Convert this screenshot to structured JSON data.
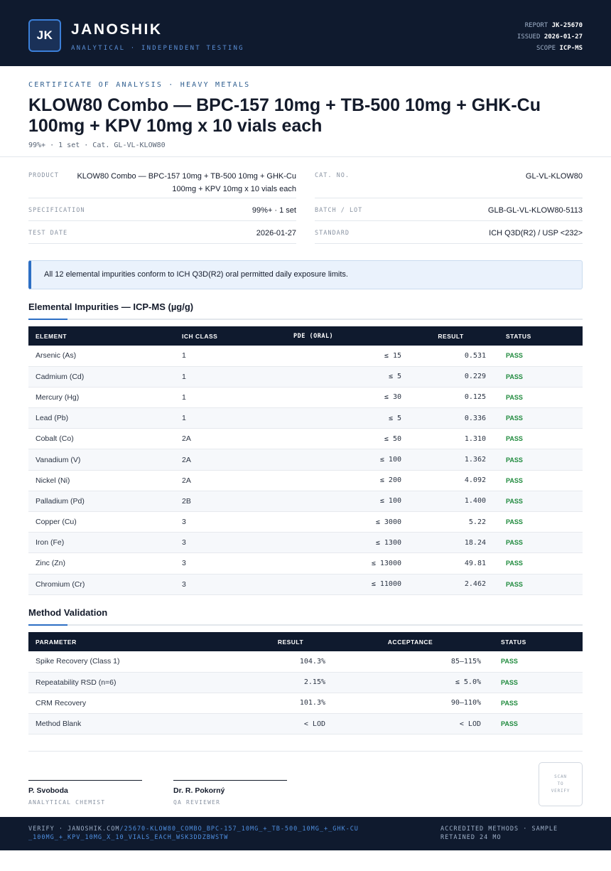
{
  "header": {
    "logo_text": "JK",
    "brand": "JANOSHIK",
    "tagline": "ANALYTICAL · INDEPENDENT TESTING",
    "report_label": "REPORT",
    "report_value": "JK-25670",
    "issued_label": "ISSUED",
    "issued_value": "2026-01-27",
    "scope_label": "SCOPE",
    "scope_value": "ICP-MS"
  },
  "doc": {
    "eyebrow": "CERTIFICATE OF ANALYSIS · HEAVY METALS",
    "title": "KLOW80 Combo — BPC-157 10mg + TB-500 10mg + GHK-Cu 100mg + KPV 10mg x 10 vials each",
    "subline": "99%+ · 1 set  ·  Cat. GL-VL-KLOW80"
  },
  "info": {
    "product_label": "PRODUCT",
    "product_value": "KLOW80 Combo — BPC-157 10mg + TB-500 10mg + GHK-Cu 100mg + KPV 10mg x 10 vials each",
    "specification_label": "SPECIFICATION",
    "specification_value": "99%+ · 1 set",
    "test_date_label": "TEST DATE",
    "test_date_value": "2026-01-27",
    "cat_label": "CAT. NO.",
    "cat_value": "GL-VL-KLOW80",
    "batch_label": "BATCH / LOT",
    "batch_value": "GLB-GL-VL-KLOW80-5113",
    "standard_label": "STANDARD",
    "standard_value": "ICH Q3D(R2) / USP <232>"
  },
  "notice": "All 12 elemental impurities conform to ICH Q3D(R2) oral permitted daily exposure limits.",
  "impurities": {
    "title": "Elemental Impurities — ICP-MS (µg/g)",
    "headers": [
      "ELEMENT",
      "ICH CLASS",
      "PDE (ORAL)",
      "RESULT",
      "STATUS"
    ],
    "rows": [
      {
        "element": "Arsenic (As)",
        "class": "1",
        "pde": "≤ 15",
        "result": "0.531",
        "status": "PASS"
      },
      {
        "element": "Cadmium (Cd)",
        "class": "1",
        "pde": "≤ 5",
        "result": "0.229",
        "status": "PASS"
      },
      {
        "element": "Mercury (Hg)",
        "class": "1",
        "pde": "≤ 30",
        "result": "0.125",
        "status": "PASS"
      },
      {
        "element": "Lead (Pb)",
        "class": "1",
        "pde": "≤ 5",
        "result": "0.336",
        "status": "PASS"
      },
      {
        "element": "Cobalt (Co)",
        "class": "2A",
        "pde": "≤ 50",
        "result": "1.310",
        "status": "PASS"
      },
      {
        "element": "Vanadium (V)",
        "class": "2A",
        "pde": "≤ 100",
        "result": "1.362",
        "status": "PASS"
      },
      {
        "element": "Nickel (Ni)",
        "class": "2A",
        "pde": "≤ 200",
        "result": "4.092",
        "status": "PASS"
      },
      {
        "element": "Palladium (Pd)",
        "class": "2B",
        "pde": "≤ 100",
        "result": "1.400",
        "status": "PASS"
      },
      {
        "element": "Copper (Cu)",
        "class": "3",
        "pde": "≤ 3000",
        "result": "5.22",
        "status": "PASS"
      },
      {
        "element": "Iron (Fe)",
        "class": "3",
        "pde": "≤ 1300",
        "result": "18.24",
        "status": "PASS"
      },
      {
        "element": "Zinc (Zn)",
        "class": "3",
        "pde": "≤ 13000",
        "result": "49.81",
        "status": "PASS"
      },
      {
        "element": "Chromium (Cr)",
        "class": "3",
        "pde": "≤ 11000",
        "result": "2.462",
        "status": "PASS"
      }
    ]
  },
  "validation": {
    "title": "Method Validation",
    "headers": [
      "PARAMETER",
      "RESULT",
      "ACCEPTANCE",
      "STATUS"
    ],
    "rows": [
      {
        "parameter": "Spike Recovery (Class 1)",
        "result": "104.3%",
        "acceptance": "85–115%",
        "status": "PASS"
      },
      {
        "parameter": "Repeatability RSD (n=6)",
        "result": "2.15%",
        "acceptance": "≤ 5.0%",
        "status": "PASS"
      },
      {
        "parameter": "CRM Recovery",
        "result": "101.3%",
        "acceptance": "90–110%",
        "status": "PASS"
      },
      {
        "parameter": "Method Blank",
        "result": "< LOD",
        "acceptance": "< LOD",
        "status": "PASS"
      }
    ]
  },
  "signatures": {
    "sig1_name": "P. Svoboda",
    "sig1_role": "ANALYTICAL CHEMIST",
    "sig2_name": "Dr. R. Pokorný",
    "sig2_role": "QA REVIEWER",
    "qr_line1": "SCAN",
    "qr_line2": "TO",
    "qr_line3": "VERIFY"
  },
  "footer": {
    "verify_prefix": "VERIFY · JANOSHIK.COM",
    "verify_path": "/25670-KLOW80_COMBO_BPC-157_10MG_+_TB-500_10MG_+_GHK-CU_100MG_+_KPV_10MG_X_10_VIALS_EACH_WSK3DDZBWSTW",
    "right_text": "ACCREDITED METHODS · SAMPLE RETAINED 24 MO"
  },
  "colors": {
    "navy": "#0f1a2e",
    "accent": "#2d6fc4",
    "pass": "#1f8a3d"
  }
}
